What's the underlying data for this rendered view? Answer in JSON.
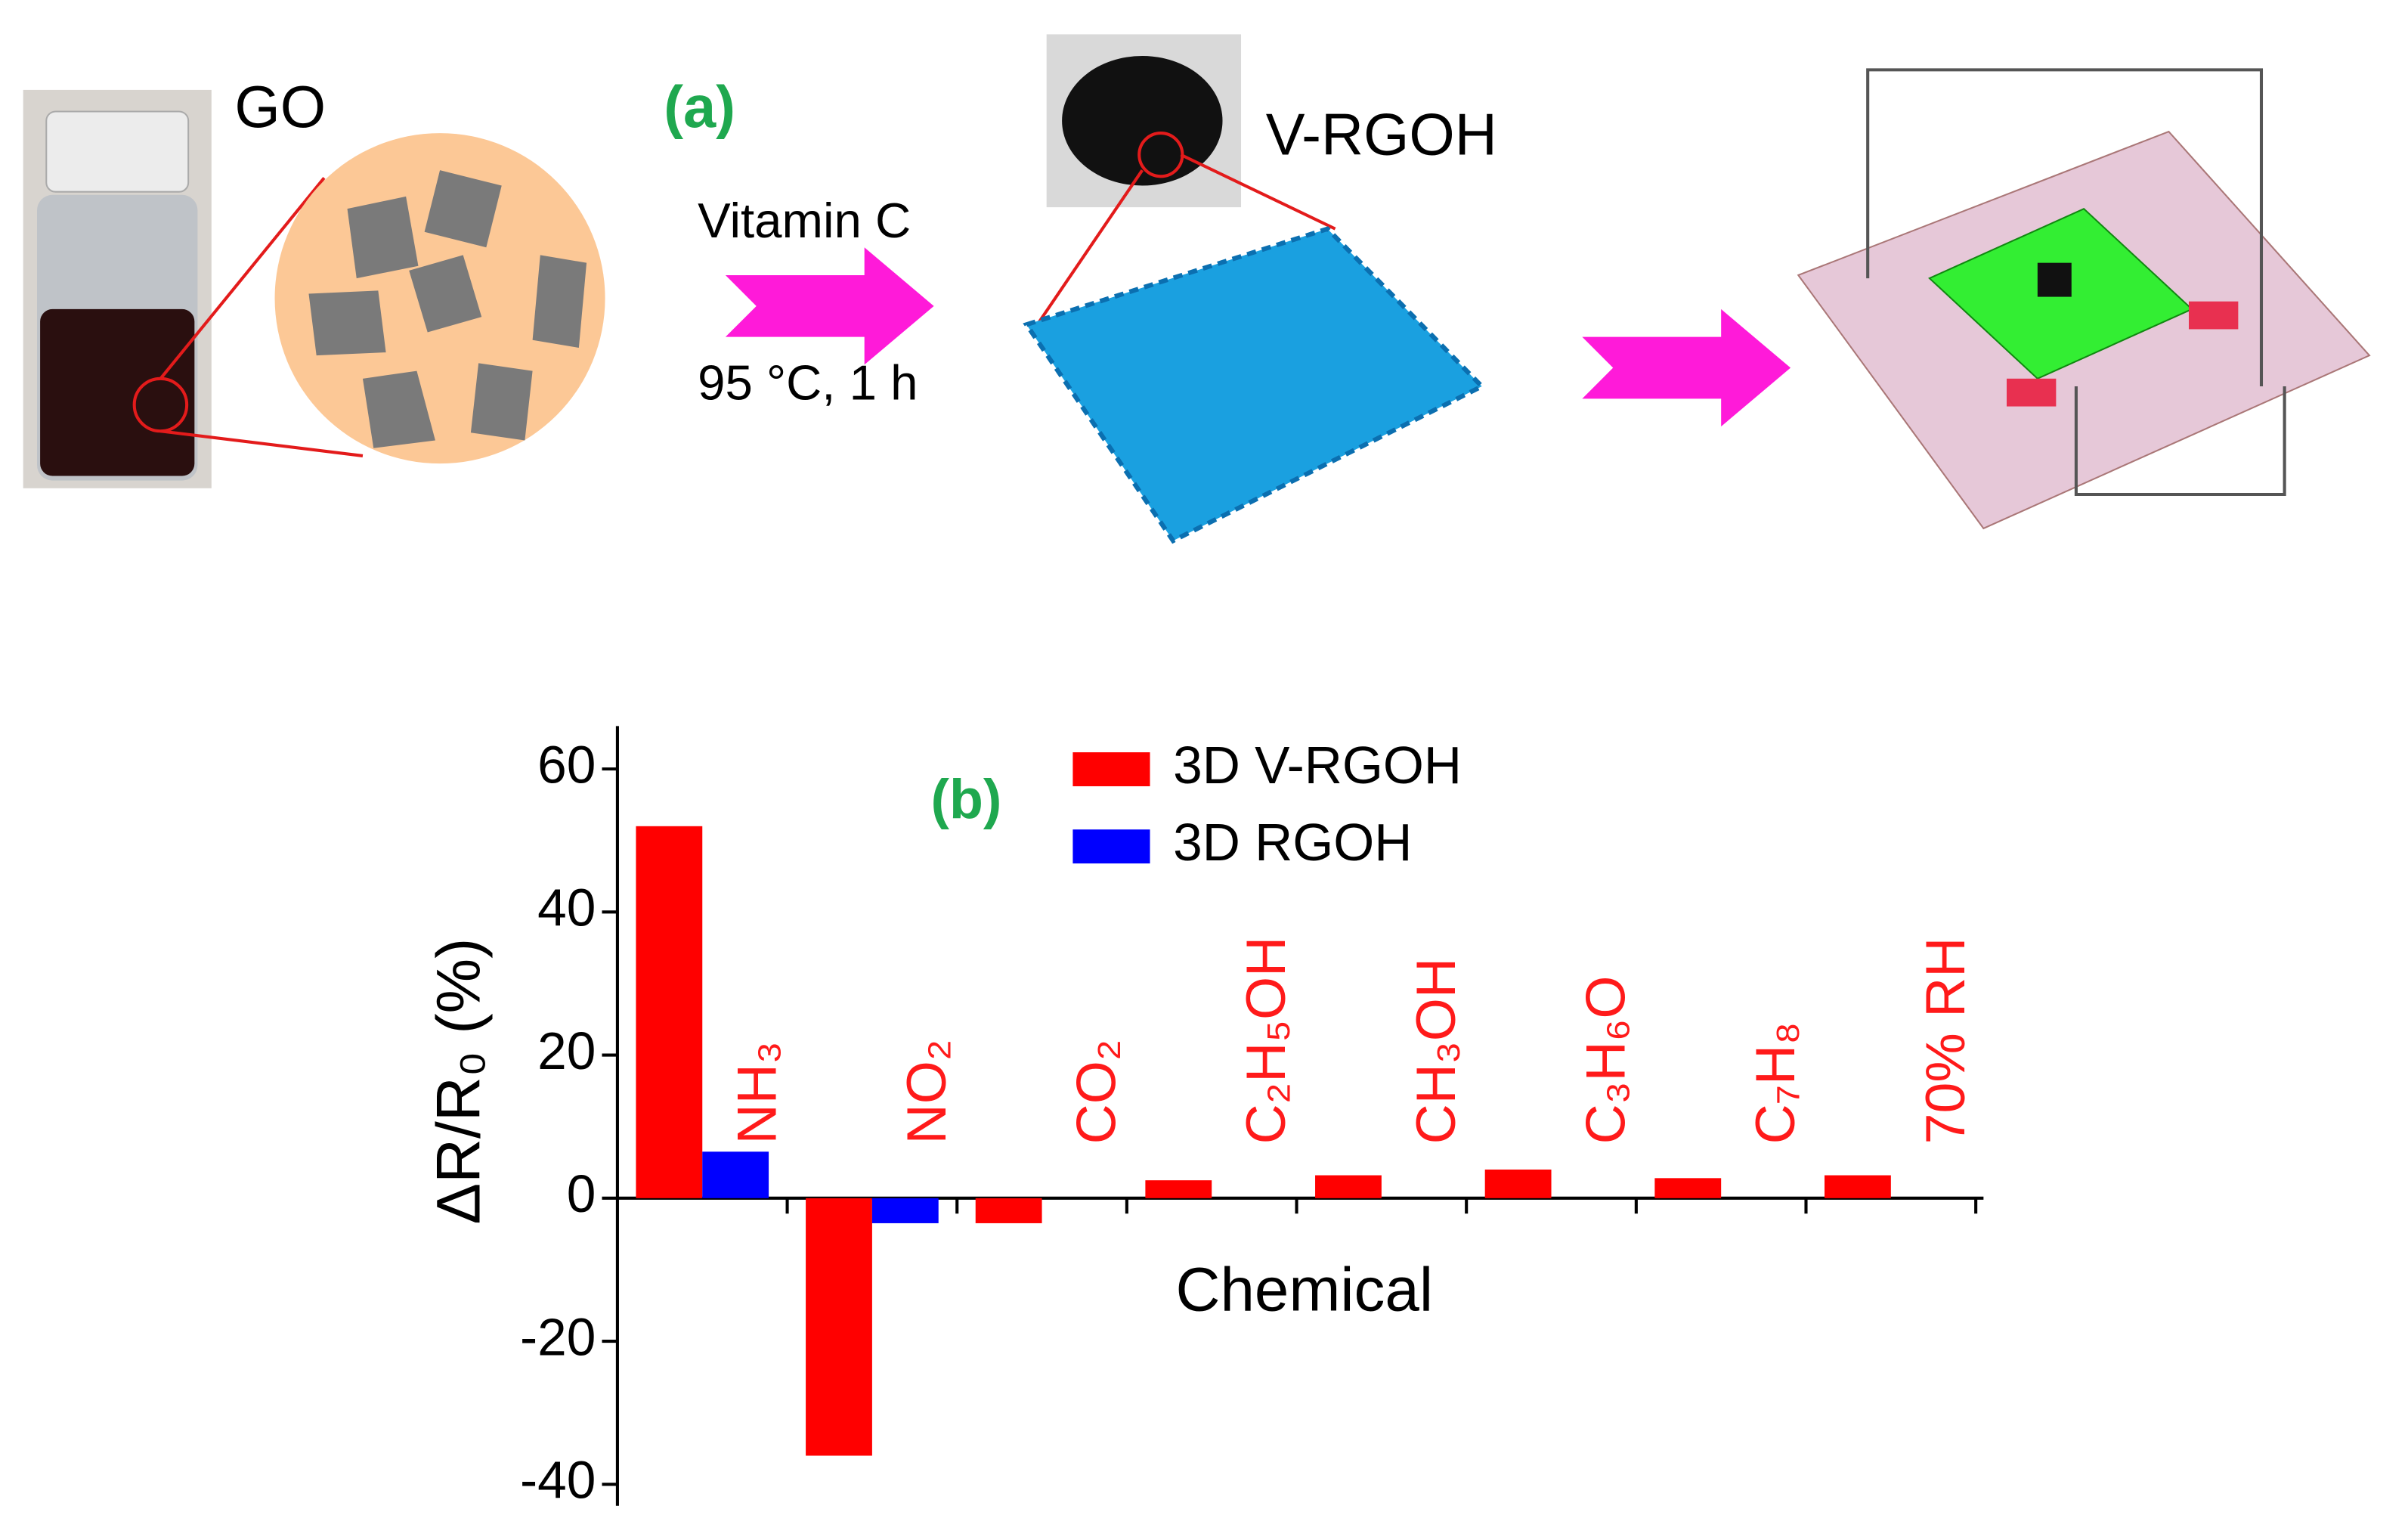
{
  "schematic": {
    "panel_label": "(a)",
    "go_label": "GO",
    "step_reagent": "Vitamin C",
    "step_condition": "95 °C, 1 h",
    "product_label": "V-RGOH"
  },
  "chart_data": {
    "type": "bar",
    "panel_label": "(b)",
    "x_label": "Chemical",
    "y_label": "ΔR/R₀ (%)",
    "categories": [
      "NH₃",
      "NO₂",
      "CO₂",
      "C₂H₅OH",
      "CH₃OH",
      "C₃H₆O",
      "C₇H₈",
      "70% RH"
    ],
    "category_color": "#ff1a1a",
    "series": [
      {
        "name": "3D V-RGOH",
        "color": "#ff0000",
        "values": [
          52,
          -36,
          -3.5,
          2.5,
          3.2,
          4,
          2.8,
          3.2
        ]
      },
      {
        "name": "3D RGOH",
        "color": "#0000ff",
        "values": [
          6.5,
          -3.5,
          null,
          null,
          null,
          null,
          null,
          null
        ]
      }
    ],
    "ylim": [
      -43,
      66
    ],
    "yticks": [
      -40,
      -20,
      0,
      20,
      40,
      60
    ],
    "legend": "top"
  }
}
